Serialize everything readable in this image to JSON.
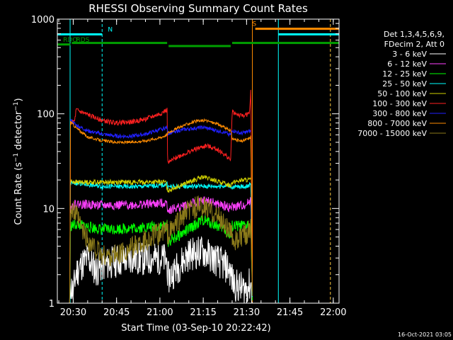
{
  "chart_data": {
    "type": "line",
    "title": "RHESSI Observing Summary Count Rates",
    "xlabel": "Start Time (03-Sep-10 20:22:42)",
    "ylabel": "Count Rate (s⁻¹ detector⁻¹)",
    "ylabel_parts": {
      "pre": "Count Rate (s",
      "exp1": "−1",
      "mid": " detector",
      "exp2": "−1",
      "post": ")"
    },
    "y_scale": "log",
    "ylim": [
      1,
      1000
    ],
    "xlim": [
      "20:24:30",
      "22:02:00"
    ],
    "x_ticks": [
      "20:30",
      "20:45",
      "21:00",
      "21:15",
      "21:30",
      "21:45",
      "22:00"
    ],
    "y_ticks": [
      "1",
      "10",
      "100",
      "1000"
    ],
    "timestamp": "16-Oct-2021 03:05",
    "legend_header": [
      "Det 1,3,4,5,6,9,",
      "FDecim 2, Att 0"
    ],
    "legend_position": "right",
    "series": [
      {
        "name": "3 - 6 keV",
        "color": "#ffffff",
        "seed": 11,
        "points": [
          [
            "20:26:30",
            1
          ],
          [
            "20:28:50",
            1
          ],
          [
            "20:29:00",
            1.6
          ],
          [
            "20:30:00",
            1.3
          ],
          [
            "20:31:00",
            2.1
          ],
          [
            "20:33:00",
            2.6
          ],
          [
            "20:35:00",
            3.0
          ],
          [
            "20:38:00",
            2.2
          ],
          [
            "20:40:00",
            2.5
          ],
          [
            "20:45:00",
            2.8
          ],
          [
            "20:50:00",
            3.0
          ],
          [
            "20:55:00",
            2.9
          ],
          [
            "21:00:00",
            3.0
          ],
          [
            "21:02:30",
            2.8
          ],
          [
            "21:02:40",
            1.8
          ],
          [
            "21:05:00",
            2.2
          ],
          [
            "21:10:00",
            3.3
          ],
          [
            "21:15:00",
            3.5
          ],
          [
            "21:20:00",
            2.8
          ],
          [
            "21:24:00",
            2.3
          ],
          [
            "21:25:30",
            1.6
          ],
          [
            "21:27:00",
            1.5
          ],
          [
            "21:29:00",
            1.4
          ],
          [
            "21:31:30",
            1.6
          ],
          [
            "21:32:00",
            1
          ]
        ],
        "noise": 0.18
      },
      {
        "name": "6 - 12 keV",
        "color": "#ff40ff",
        "seed": 22,
        "points": [
          [
            "20:26:30",
            1
          ],
          [
            "20:28:50",
            1
          ],
          [
            "20:29:00",
            10.2
          ],
          [
            "20:31:00",
            11.2
          ],
          [
            "20:40:00",
            10.8
          ],
          [
            "20:50:00",
            10.9
          ],
          [
            "21:00:00",
            11.3
          ],
          [
            "21:02:30",
            11.5
          ],
          [
            "21:02:40",
            9.6
          ],
          [
            "21:06:00",
            10.2
          ],
          [
            "21:12:00",
            11.5
          ],
          [
            "21:16:00",
            12.2
          ],
          [
            "21:20:00",
            11.0
          ],
          [
            "21:24:30",
            10.2
          ],
          [
            "21:25:00",
            10.3
          ],
          [
            "21:30:00",
            11.0
          ],
          [
            "21:31:30",
            12.5
          ],
          [
            "21:32:00",
            1
          ]
        ],
        "noise": 0.05
      },
      {
        "name": "12 - 25 keV",
        "color": "#00ff00",
        "seed": 33,
        "points": [
          [
            "20:26:30",
            1
          ],
          [
            "20:28:50",
            1
          ],
          [
            "20:29:00",
            6.5
          ],
          [
            "20:31:00",
            6.8
          ],
          [
            "20:40:00",
            6.0
          ],
          [
            "20:50:00",
            6.2
          ],
          [
            "21:00:00",
            6.5
          ],
          [
            "21:02:30",
            6.6
          ],
          [
            "21:02:40",
            4.4
          ],
          [
            "21:08:00",
            5.5
          ],
          [
            "21:15:00",
            7.6
          ],
          [
            "21:22:00",
            6.2
          ],
          [
            "21:24:30",
            5.0
          ],
          [
            "21:25:00",
            6.5
          ],
          [
            "21:30:00",
            6.5
          ],
          [
            "21:31:30",
            7.2
          ],
          [
            "21:32:00",
            1
          ]
        ],
        "noise": 0.06
      },
      {
        "name": "25 - 50 keV",
        "color": "#00ffff",
        "seed": 44,
        "points": [
          [
            "20:26:30",
            1
          ],
          [
            "20:28:50",
            1
          ],
          [
            "20:29:00",
            18.5
          ],
          [
            "20:31:00",
            18.5
          ],
          [
            "20:40:00",
            17.2
          ],
          [
            "20:50:00",
            17.0
          ],
          [
            "21:00:00",
            17.5
          ],
          [
            "21:02:30",
            18.0
          ],
          [
            "21:02:40",
            17.0
          ],
          [
            "21:10:00",
            17.2
          ],
          [
            "21:20:00",
            17.2
          ],
          [
            "21:24:30",
            17.5
          ],
          [
            "21:25:00",
            16.8
          ],
          [
            "21:30:00",
            17.2
          ],
          [
            "21:31:30",
            18.0
          ],
          [
            "21:32:00",
            1
          ]
        ],
        "noise": 0.025
      },
      {
        "name": "50 - 100 keV",
        "color": "#d0d000",
        "seed": 55,
        "points": [
          [
            "20:29:00",
            19.5
          ],
          [
            "20:31:00",
            19.0
          ],
          [
            "20:33:00",
            19.0
          ],
          [
            "21:02:00",
            19.0
          ],
          [
            "21:02:40",
            15.5
          ],
          [
            "21:08:00",
            18.0
          ],
          [
            "21:15:00",
            21.5
          ],
          [
            "21:22:00",
            18.5
          ],
          [
            "21:24:30",
            17.5
          ],
          [
            "21:25:00",
            19.0
          ],
          [
            "21:29:00",
            20.0
          ],
          [
            "21:31:30",
            20.0
          ]
        ],
        "noise": 0.025
      },
      {
        "name": "100 - 300 keV",
        "color": "#ff2020",
        "seed": 66,
        "points": [
          [
            "20:26:30",
            1
          ],
          [
            "20:28:50",
            1
          ],
          [
            "20:29:00",
            79
          ],
          [
            "20:30:30",
            84
          ],
          [
            "20:31:00",
            110
          ],
          [
            "20:35:00",
            98
          ],
          [
            "20:40:00",
            85
          ],
          [
            "20:45:00",
            80
          ],
          [
            "20:50:00",
            82
          ],
          [
            "20:55:00",
            88
          ],
          [
            "21:00:00",
            100
          ],
          [
            "21:02:30",
            110
          ],
          [
            "21:02:40",
            30
          ],
          [
            "21:06:00",
            35
          ],
          [
            "21:12:00",
            42
          ],
          [
            "21:16:00",
            46
          ],
          [
            "21:20:00",
            42
          ],
          [
            "21:24:00",
            34
          ],
          [
            "21:24:30",
            32
          ],
          [
            "21:25:00",
            105
          ],
          [
            "21:28:00",
            95
          ],
          [
            "21:31:00",
            100
          ],
          [
            "21:31:30",
            190
          ],
          [
            "21:32:00",
            1
          ]
        ],
        "noise": 0.025
      },
      {
        "name": "300 - 800 keV",
        "color": "#2020ff",
        "seed": 77,
        "points": [
          [
            "20:29:00",
            86
          ],
          [
            "20:31:00",
            76
          ],
          [
            "20:35:00",
            66
          ],
          [
            "20:40:00",
            61
          ],
          [
            "20:45:00",
            58
          ],
          [
            "20:50:00",
            58
          ],
          [
            "20:55:00",
            61
          ],
          [
            "21:00:00",
            68
          ],
          [
            "21:02:30",
            72
          ],
          [
            "21:02:40",
            62
          ],
          [
            "21:08:00",
            68
          ],
          [
            "21:15:00",
            72
          ],
          [
            "21:22:00",
            64
          ],
          [
            "21:24:30",
            60
          ],
          [
            "21:25:00",
            67
          ],
          [
            "21:28:00",
            62
          ],
          [
            "21:31:30",
            66
          ]
        ],
        "noise": 0.02
      },
      {
        "name": "800 - 7000 keV",
        "color": "#ff8c00",
        "seed": 88,
        "points": [
          [
            "20:26:30",
            1
          ],
          [
            "20:28:50",
            1
          ],
          [
            "20:29:00",
            83
          ],
          [
            "20:31:00",
            71
          ],
          [
            "20:35:00",
            57
          ],
          [
            "20:40:00",
            52
          ],
          [
            "20:45:00",
            50
          ],
          [
            "20:50:00",
            50
          ],
          [
            "20:55:00",
            52
          ],
          [
            "21:00:00",
            56
          ],
          [
            "21:02:30",
            60
          ],
          [
            "21:02:40",
            63
          ],
          [
            "21:08:00",
            75
          ],
          [
            "21:12:00",
            83
          ],
          [
            "21:16:00",
            85
          ],
          [
            "21:20:00",
            78
          ],
          [
            "21:24:30",
            66
          ],
          [
            "21:25:00",
            55
          ],
          [
            "21:28:00",
            51
          ],
          [
            "21:31:00",
            55
          ],
          [
            "21:31:30",
            58
          ],
          [
            "21:32:00",
            1
          ]
        ],
        "noise": 0.015
      },
      {
        "name": "7000 - 15000 keV",
        "color": "#8b7a1a",
        "seed": 99,
        "points": [
          [
            "20:26:30",
            1
          ],
          [
            "20:28:50",
            1
          ],
          [
            "20:29:00",
            10.0
          ],
          [
            "20:31:00",
            8.5
          ],
          [
            "20:33:00",
            6.0
          ],
          [
            "20:36:00",
            4.2
          ],
          [
            "20:40:00",
            3.2
          ],
          [
            "20:45:00",
            3.2
          ],
          [
            "20:50:00",
            3.8
          ],
          [
            "20:55:00",
            4.6
          ],
          [
            "21:00:00",
            5.5
          ],
          [
            "21:02:30",
            6.0
          ],
          [
            "21:02:40",
            5.2
          ],
          [
            "21:06:00",
            7.0
          ],
          [
            "21:10:00",
            9.5
          ],
          [
            "21:13:00",
            10.5
          ],
          [
            "21:18:00",
            9.5
          ],
          [
            "21:22:00",
            7.0
          ],
          [
            "21:24:30",
            5.5
          ],
          [
            "21:25:00",
            5.0
          ],
          [
            "21:27:00",
            4.5
          ],
          [
            "21:30:00",
            5.5
          ],
          [
            "21:31:30",
            6.5
          ],
          [
            "21:32:00",
            1
          ]
        ],
        "noise": 0.12
      }
    ],
    "flag_bars": [
      {
        "label": "RDO",
        "color": "#00a000",
        "segments": [
          [
            "20:24:30",
            "20:29:00"
          ]
        ],
        "level": 540,
        "label_at": "20:26:30"
      },
      {
        "label": "RDS",
        "color": "#00a000",
        "segments": [
          [
            "20:29:30",
            "21:02:30"
          ],
          [
            "21:03:00",
            "21:24:30"
          ],
          [
            "21:25:00",
            "22:02:00"
          ]
        ],
        "level_steps": [
          540,
          560,
          520,
          560
        ],
        "label_at": "20:31:00"
      },
      {
        "label": "N",
        "color": "#00ffff",
        "segments": [
          [
            "20:24:30",
            "20:40:00"
          ],
          [
            "21:41:00",
            "22:02:00"
          ]
        ],
        "level": 690,
        "label_at": "20:42:00"
      },
      {
        "label": "S",
        "color": "#ff8c00",
        "segments": [
          [
            "21:33:00",
            "22:02:00"
          ]
        ],
        "level": 790,
        "label_at": "21:32:00"
      }
    ],
    "vlines": [
      {
        "t": "20:28:55",
        "color": "#00ffff",
        "dashed": false
      },
      {
        "t": "20:40:00",
        "color": "#00ffff",
        "dashed": true
      },
      {
        "t": "21:32:00",
        "color": "#ff8c00",
        "dashed": false
      },
      {
        "t": "21:41:00",
        "color": "#00ffff",
        "dashed": false
      },
      {
        "t": "21:59:00",
        "color": "#00ffff",
        "dashed": true
      },
      {
        "t": "21:59:00",
        "color": "#ff8c00",
        "dashed": true
      }
    ]
  }
}
